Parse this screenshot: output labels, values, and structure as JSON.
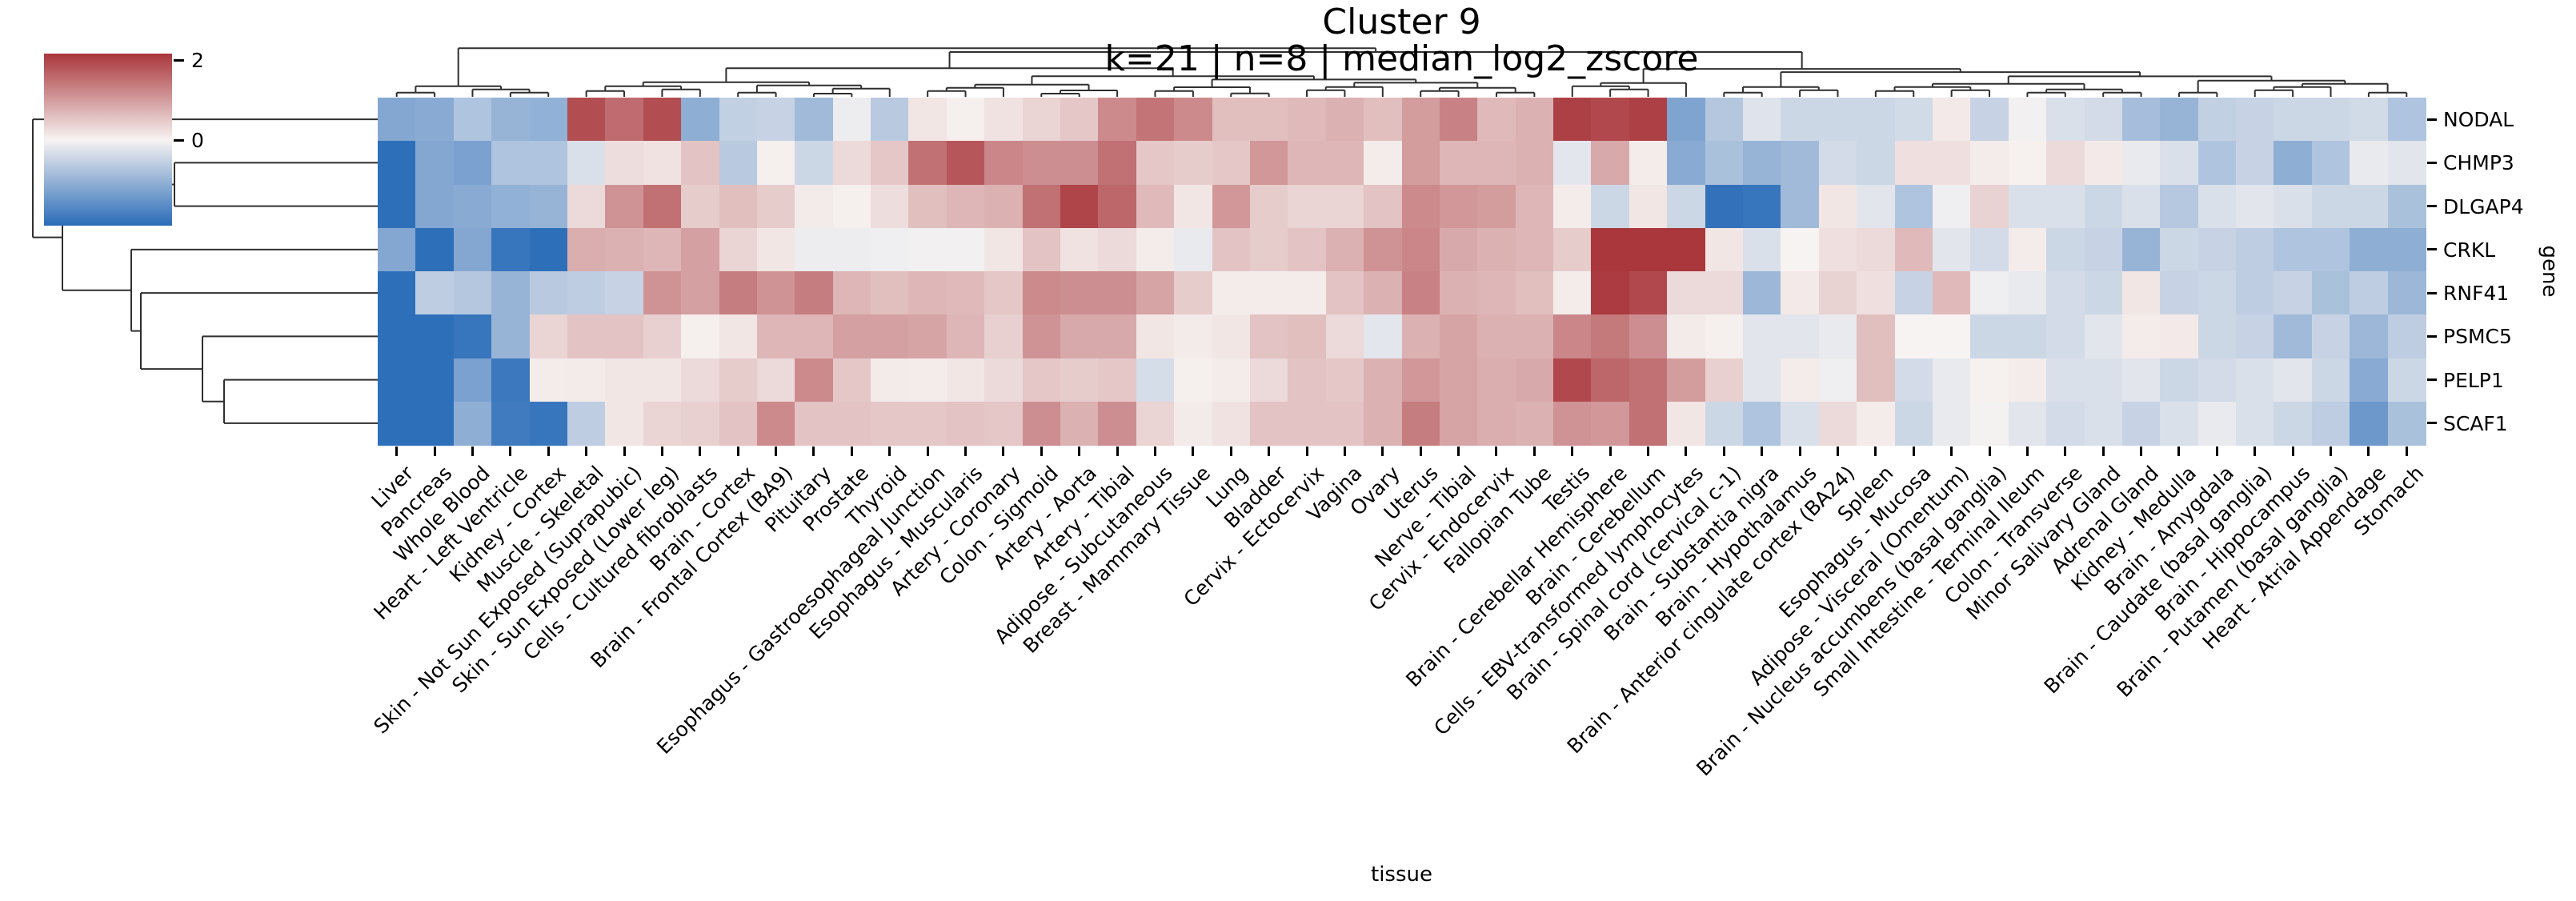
{
  "header": {
    "title": "Cluster 9",
    "subtitle": "k=21 | n=8 | median_log2_zscore"
  },
  "colorbar": {
    "ticks": [
      {
        "label": "2",
        "value": 2
      },
      {
        "label": "0",
        "value": 0
      }
    ],
    "vmin": -2.14,
    "vmax": 2.16,
    "low_color": "#2a6cb8",
    "mid_color": "#f7f3f2",
    "high_color": "#a9363b"
  },
  "chart_data": {
    "type": "heatmap",
    "title": "Cluster 9",
    "subtitle": "k=21 | n=8 | median_log2_zscore",
    "xlabel": "tissue",
    "ylabel": "gene",
    "legend_position": "upper-left colorbar",
    "colormap": "blue-white-red diverging (vlag)",
    "vmin": -2.14,
    "vmax": 2.16,
    "row_dendrogram": true,
    "col_dendrogram": true,
    "y_categories": [
      "NODAL",
      "CHMP3",
      "DLGAP4",
      "CRKL",
      "RNF41",
      "PSMC5",
      "PELP1",
      "SCAF1"
    ],
    "x_categories": [
      "Liver",
      "Pancreas",
      "Whole Blood",
      "Heart - Left Ventricle",
      "Kidney - Cortex",
      "Muscle - Skeletal",
      "Skin - Not Sun Exposed (Suprapubic)",
      "Skin - Sun Exposed (Lower leg)",
      "Cells - Cultured fibroblasts",
      "Brain - Cortex",
      "Brain - Frontal Cortex (BA9)",
      "Pituitary",
      "Prostate",
      "Thyroid",
      "Esophagus - Gastroesophageal Junction",
      "Esophagus - Muscularis",
      "Artery - Coronary",
      "Colon - Sigmoid",
      "Artery - Aorta",
      "Artery - Tibial",
      "Adipose - Subcutaneous",
      "Breast - Mammary Tissue",
      "Lung",
      "Bladder",
      "Cervix - Ectocervix",
      "Vagina",
      "Ovary",
      "Uterus",
      "Nerve - Tibial",
      "Cervix - Endocervix",
      "Fallopian Tube",
      "Testis",
      "Brain - Cerebellar Hemisphere",
      "Brain - Cerebellum",
      "Cells - EBV-transformed lymphocytes",
      "Brain - Spinal cord (cervical c-1)",
      "Brain - Substantia nigra",
      "Brain - Hypothalamus",
      "Brain - Anterior cingulate cortex (BA24)",
      "Spleen",
      "Esophagus - Mucosa",
      "Adipose - Visceral (Omentum)",
      "Brain - Nucleus accumbens (basal ganglia)",
      "Small Intestine - Terminal Ileum",
      "Colon - Transverse",
      "Minor Salivary Gland",
      "Adrenal Gland",
      "Kidney - Medulla",
      "Brain - Amygdala",
      "Brain - Caudate (basal ganglia)",
      "Brain - Hippocampus",
      "Brain - Putamen (basal ganglia)",
      "Heart - Atrial Appendage",
      "Stomach"
    ],
    "values": [
      [
        -1.2,
        -1.15,
        -0.75,
        -1.0,
        -1.05,
        1.9,
        1.55,
        1.9,
        -1.1,
        -0.55,
        -0.5,
        -0.9,
        -0.1,
        -0.65,
        0.15,
        0.05,
        0.2,
        0.35,
        0.5,
        1.2,
        1.45,
        1.2,
        0.6,
        0.6,
        0.65,
        0.75,
        0.6,
        1.0,
        1.3,
        0.65,
        0.75,
        2.05,
        1.95,
        2.05,
        -1.25,
        -0.7,
        -0.25,
        -0.45,
        -0.45,
        -0.45,
        -0.4,
        0.12,
        -0.5,
        -0.05,
        -0.3,
        -0.38,
        -0.85,
        -1.0,
        -0.55,
        -0.5,
        -0.45,
        -0.45,
        -0.4,
        -0.75
      ],
      [
        -2.1,
        -1.2,
        -1.3,
        -0.75,
        -0.75,
        -0.3,
        0.25,
        0.2,
        0.55,
        -0.65,
        0.05,
        -0.45,
        0.3,
        0.5,
        1.5,
        1.8,
        1.25,
        1.15,
        1.15,
        1.5,
        0.5,
        0.45,
        0.5,
        1.05,
        0.7,
        0.7,
        0.08,
        1.0,
        0.7,
        0.7,
        0.75,
        -0.2,
        0.85,
        0.08,
        -1.15,
        -0.8,
        -1.0,
        -0.9,
        -0.38,
        -0.45,
        0.22,
        0.22,
        0.08,
        0.03,
        0.3,
        0.12,
        -0.15,
        -0.3,
        -0.75,
        -0.5,
        -1.1,
        -0.75,
        -0.15,
        -0.22
      ],
      [
        -2.1,
        -1.2,
        -1.15,
        -1.05,
        -1.0,
        0.3,
        1.1,
        1.5,
        0.45,
        0.6,
        0.45,
        0.1,
        0.05,
        0.25,
        0.6,
        0.7,
        0.75,
        1.5,
        2.0,
        1.6,
        0.65,
        0.15,
        1.05,
        0.45,
        0.35,
        0.35,
        0.55,
        1.2,
        1.05,
        1.0,
        0.7,
        0.08,
        -0.45,
        0.15,
        -0.45,
        -2.05,
        -2.0,
        -0.9,
        0.15,
        -0.22,
        -0.75,
        -0.08,
        0.38,
        -0.3,
        -0.3,
        -0.45,
        -0.3,
        -0.68,
        -0.3,
        -0.22,
        -0.3,
        -0.45,
        -0.45,
        -0.8
      ],
      [
        -1.2,
        -2.1,
        -1.2,
        -2.0,
        -2.1,
        0.8,
        0.75,
        0.7,
        0.95,
        0.35,
        0.15,
        -0.1,
        -0.1,
        -0.08,
        -0.05,
        -0.05,
        0.15,
        0.55,
        0.2,
        0.3,
        0.08,
        -0.15,
        0.55,
        0.45,
        0.55,
        0.75,
        1.1,
        1.25,
        0.85,
        0.75,
        0.7,
        0.45,
        2.15,
        2.15,
        2.15,
        0.15,
        -0.3,
        0.0,
        0.22,
        0.3,
        0.65,
        -0.22,
        -0.38,
        0.08,
        -0.45,
        -0.5,
        -1.0,
        -0.45,
        -0.5,
        -0.6,
        -0.75,
        -0.75,
        -1.1,
        -1.1
      ],
      [
        -2.1,
        -0.6,
        -0.7,
        -1.0,
        -0.65,
        -0.6,
        -0.5,
        1.1,
        0.95,
        1.35,
        1.1,
        1.35,
        0.7,
        0.6,
        0.7,
        0.65,
        0.5,
        1.2,
        1.15,
        1.15,
        0.9,
        0.45,
        0.08,
        0.08,
        0.08,
        0.55,
        0.75,
        1.3,
        0.75,
        0.7,
        0.6,
        0.08,
        2.1,
        1.95,
        0.3,
        0.3,
        -0.95,
        0.12,
        0.38,
        0.22,
        -0.5,
        0.65,
        -0.08,
        -0.15,
        -0.38,
        -0.45,
        0.15,
        -0.5,
        -0.45,
        -0.6,
        -0.5,
        -0.8,
        -0.6,
        -0.95
      ],
      [
        -2.1,
        -2.1,
        -2.0,
        -1.0,
        0.35,
        0.55,
        0.55,
        0.4,
        0.05,
        0.15,
        0.7,
        0.7,
        0.95,
        0.95,
        0.9,
        0.7,
        0.4,
        1.1,
        0.85,
        0.85,
        0.15,
        0.1,
        0.15,
        0.55,
        0.6,
        0.3,
        -0.2,
        0.75,
        0.9,
        0.75,
        0.75,
        1.25,
        1.4,
        1.15,
        0.1,
        0.05,
        -0.22,
        -0.22,
        -0.15,
        0.6,
        0.0,
        0.0,
        -0.45,
        -0.45,
        -0.38,
        -0.22,
        0.08,
        0.12,
        -0.45,
        -0.5,
        -0.9,
        -0.5,
        -0.95,
        -0.6
      ],
      [
        -2.1,
        -2.1,
        -1.3,
        -1.95,
        0.08,
        0.1,
        0.15,
        0.15,
        0.3,
        0.45,
        0.3,
        1.2,
        0.5,
        0.1,
        0.08,
        0.15,
        0.3,
        0.5,
        0.45,
        0.5,
        -0.35,
        0.05,
        0.08,
        0.3,
        0.55,
        0.5,
        0.75,
        1.05,
        0.9,
        0.8,
        0.85,
        1.95,
        1.6,
        1.5,
        1.0,
        0.4,
        -0.22,
        0.08,
        -0.08,
        0.6,
        -0.38,
        -0.15,
        0.03,
        0.08,
        -0.3,
        -0.3,
        -0.22,
        -0.45,
        -0.38,
        -0.3,
        -0.22,
        -0.45,
        -1.15,
        -0.45
      ],
      [
        -2.1,
        -2.1,
        -1.1,
        -1.9,
        -2.0,
        -0.6,
        0.15,
        0.35,
        0.4,
        0.55,
        1.2,
        0.55,
        0.55,
        0.5,
        0.5,
        0.55,
        0.5,
        1.15,
        0.75,
        1.15,
        0.35,
        0.1,
        0.2,
        0.55,
        0.55,
        0.55,
        0.75,
        1.35,
        0.9,
        0.8,
        0.75,
        1.1,
        1.05,
        1.5,
        0.15,
        -0.45,
        -0.75,
        -0.3,
        0.3,
        0.08,
        -0.45,
        -0.15,
        -0.03,
        -0.22,
        -0.38,
        -0.3,
        -0.5,
        -0.3,
        -0.15,
        -0.3,
        -0.45,
        -0.6,
        -1.45,
        -0.8
      ]
    ]
  },
  "axes": {
    "x_label": "tissue",
    "y_label": "gene"
  }
}
